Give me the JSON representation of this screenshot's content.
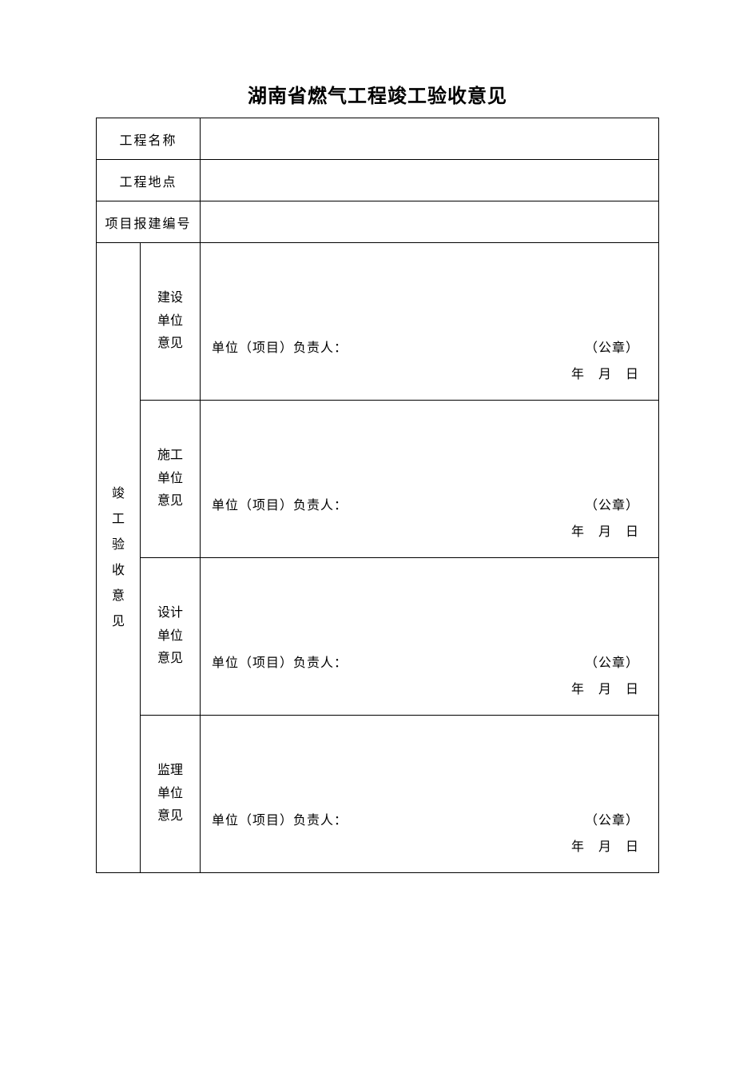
{
  "document": {
    "title": "湖南省燃气工程竣工验收意见",
    "colors": {
      "text": "#000000",
      "background": "#ffffff",
      "border": "#000000"
    },
    "typography": {
      "title_fontsize": 24,
      "body_fontsize": 16,
      "font_family": "SimSun"
    },
    "header_rows": [
      {
        "label": "工程名称",
        "value": ""
      },
      {
        "label": "工程地点",
        "value": ""
      },
      {
        "label": "项目报建编号",
        "value": ""
      }
    ],
    "main_section_label": "竣工验收意见",
    "opinion_sections": [
      {
        "label": "建设单位意见",
        "responsible_label": "单位（项目）负责人：",
        "seal_label": "（公章）",
        "date_label": "年　月　日"
      },
      {
        "label": "施工单位意见",
        "responsible_label": "单位（项目）负责人：",
        "seal_label": "（公章）",
        "date_label": "年　月　日"
      },
      {
        "label": "设计单位意见",
        "responsible_label": "单位（项目）负责人：",
        "seal_label": "（公章）",
        "date_label": "年　月　日"
      },
      {
        "label": "监理单位意见",
        "responsible_label": "单位（项目）负责人：",
        "seal_label": "（公章）",
        "date_label": "年　月　日"
      }
    ]
  }
}
